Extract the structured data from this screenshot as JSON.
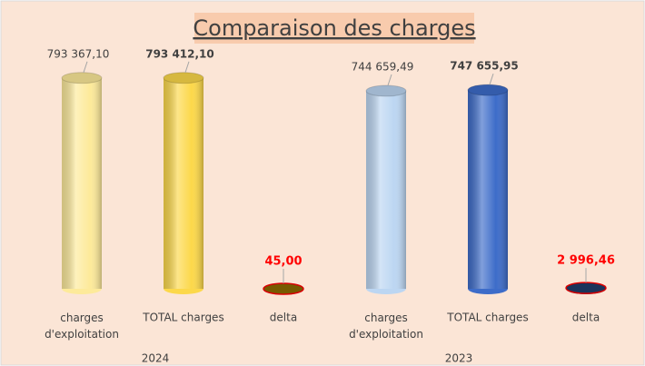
{
  "chart_data": {
    "type": "cylinder",
    "title": "Comparaison des charges",
    "categories": [
      "charges d'exploitation",
      "TOTAL charges",
      "delta"
    ],
    "series": [
      {
        "name": "2024",
        "colors": [
          "#fdea9a",
          "#fcd84a",
          "#8c6a00"
        ],
        "values": [
          793367.1,
          793412.1,
          45.0
        ],
        "value_labels": [
          "793 367,10",
          "793 412,10",
          "45,00"
        ]
      },
      {
        "name": "2023",
        "colors": [
          "#bcd6f2",
          "#3d6cc9",
          "#1f3d6b"
        ],
        "values": [
          744659.49,
          747655.95,
          2996.46
        ],
        "value_labels": [
          "744 659,49",
          "747 655,95",
          "2 996,46"
        ]
      }
    ],
    "ylim": [
      0,
      820000
    ]
  }
}
